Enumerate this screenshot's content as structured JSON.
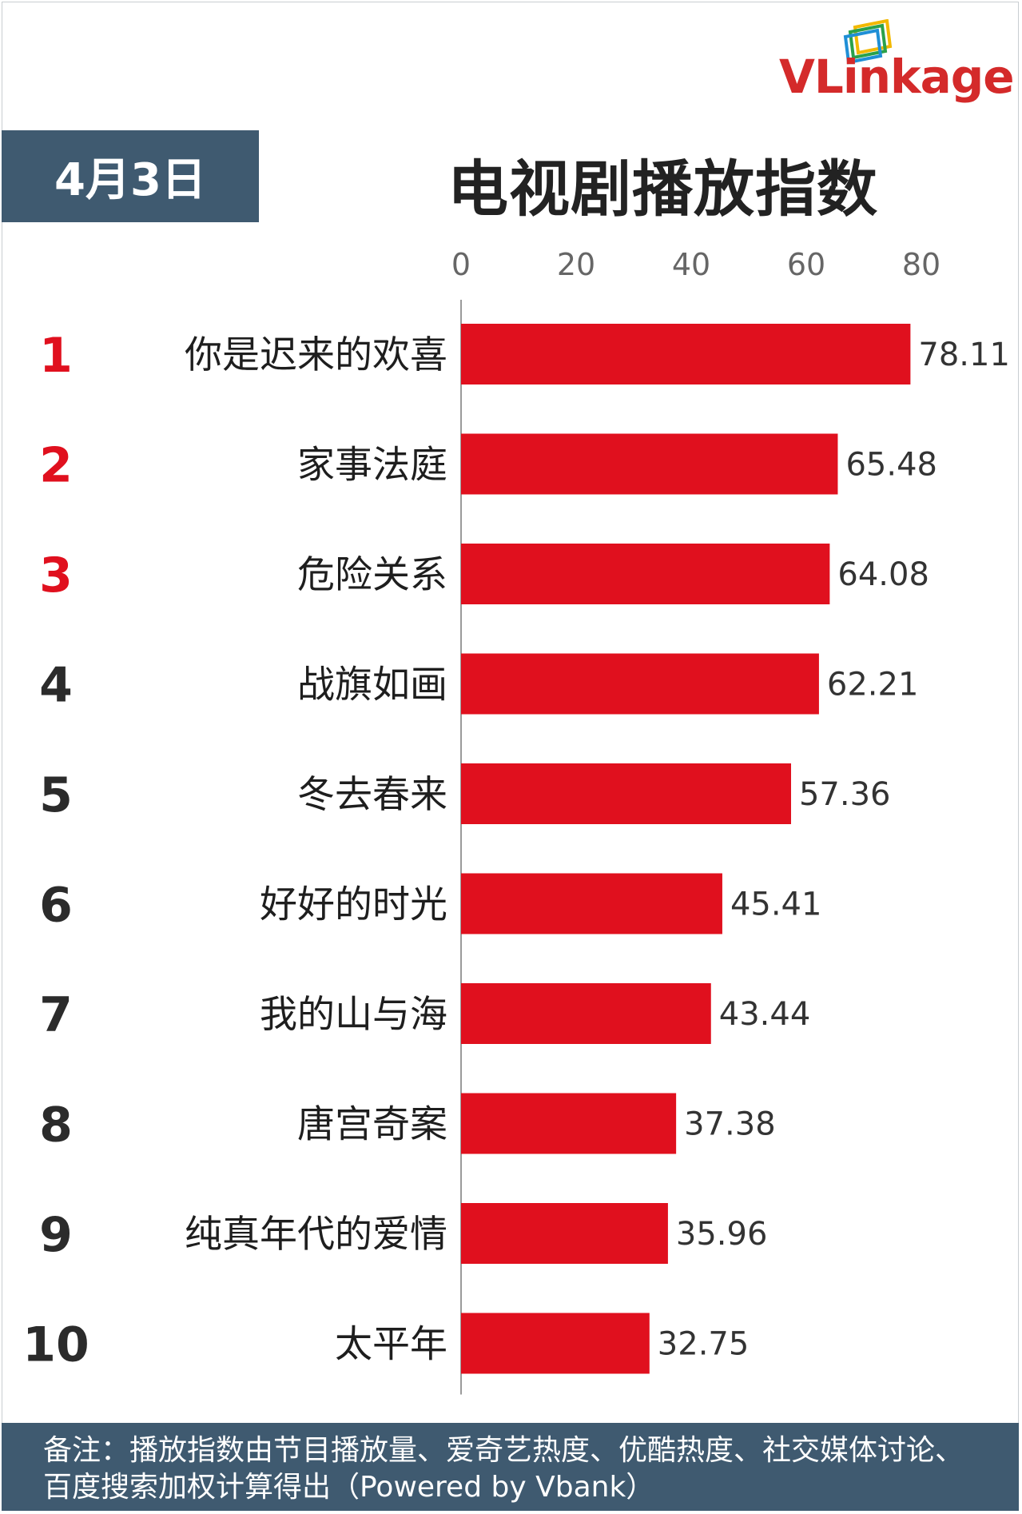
{
  "header": {
    "date": "4月3日",
    "title": "电视剧播放指数",
    "logo": "VLinkage"
  },
  "colors": {
    "bar": "#e0101e",
    "rank_top": "#e0101e",
    "rank_other": "#2b2b2b",
    "panel": "#3f5a70"
  },
  "chart_data": {
    "type": "bar",
    "orientation": "horizontal",
    "title": "电视剧播放指数",
    "xlim": [
      0,
      80
    ],
    "xticks": [
      0,
      20,
      40,
      60,
      80
    ],
    "ranks": [
      "1",
      "2",
      "3",
      "4",
      "5",
      "6",
      "7",
      "8",
      "9",
      "10"
    ],
    "categories": [
      "你是迟来的欢喜",
      "家事法庭",
      "危险关系",
      "战旗如画",
      "冬去春来",
      "好好的时光",
      "我的山与海",
      "唐宫奇案",
      "纯真年代的爱情",
      "太平年"
    ],
    "values": [
      78.11,
      65.48,
      64.08,
      62.21,
      57.36,
      45.41,
      43.44,
      37.38,
      35.96,
      32.75
    ],
    "value_labels": [
      "78.11",
      "65.48",
      "64.08",
      "62.21",
      "57.36",
      "45.41",
      "43.44",
      "37.38",
      "35.96",
      "32.75"
    ],
    "grid": false,
    "legend": "none"
  },
  "footer": {
    "note": "备注：播放指数由节目播放量、爱奇艺热度、优酷热度、社交媒体讨论、百度搜索加权计算得出（Powered by Vbank）"
  }
}
